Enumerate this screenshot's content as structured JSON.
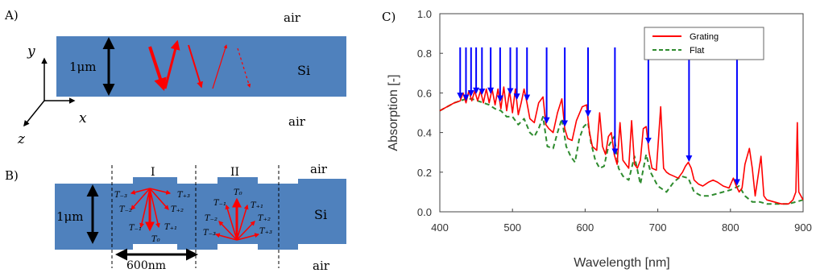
{
  "panelA": {
    "label": "A)",
    "air_top": "air",
    "air_bottom": "air",
    "material": "Si",
    "thickness": "1μm",
    "axis_x": "x",
    "axis_y": "y",
    "axis_z": "z",
    "slab_color": "#4f81bd",
    "ray_color": "#ff0000"
  },
  "panelB": {
    "label": "B)",
    "air_top": "air",
    "air_bottom": "air",
    "material": "Si",
    "thickness": "1μm",
    "period": "600nm",
    "region1": "I",
    "region2": "II",
    "orders_I": [
      "T₋₃",
      "T₋₂",
      "T₋₁",
      "T₀",
      "T₊₁",
      "T₊₂",
      "T₊₃"
    ],
    "orders_II": [
      "T₀",
      "T₋₁",
      "T₊₁",
      "T₋₂",
      "T₊₂",
      "T₋₃",
      "T₊₃"
    ]
  },
  "panelC": {
    "label": "C)",
    "chart_data": {
      "type": "line",
      "xlabel": "Wavelength [nm]",
      "ylabel": "Absorption  [-]",
      "xlim": [
        400,
        900
      ],
      "ylim": [
        0.0,
        1.0
      ],
      "xticks": [
        "400",
        "500",
        "600",
        "700",
        "800",
        "900"
      ],
      "yticks": [
        "0.0",
        "0.2",
        "0.4",
        "0.6",
        "0.8",
        "1.0"
      ],
      "grid": false,
      "legend_position": "top-right",
      "series": [
        {
          "name": "Grating",
          "color": "#ff0000",
          "style": "solid",
          "x": [
            400,
            410,
            420,
            428,
            432,
            436,
            440,
            444,
            448,
            452,
            456,
            460,
            464,
            468,
            472,
            476,
            480,
            484,
            488,
            492,
            496,
            500,
            504,
            508,
            512,
            516,
            520,
            524,
            530,
            536,
            542,
            546,
            550,
            556,
            562,
            568,
            572,
            576,
            582,
            588,
            596,
            602,
            606,
            610,
            616,
            620,
            624,
            628,
            632,
            636,
            640,
            644,
            648,
            652,
            656,
            660,
            664,
            668,
            672,
            676,
            680,
            684,
            688,
            692,
            698,
            704,
            708,
            712,
            716,
            722,
            728,
            734,
            738,
            742,
            746,
            750,
            756,
            762,
            766,
            770,
            776,
            782,
            790,
            798,
            804,
            808,
            812,
            816,
            820,
            826,
            830,
            834,
            838,
            842,
            846,
            850,
            860,
            870,
            880,
            886,
            890,
            892,
            894,
            900
          ],
          "y": [
            0.51,
            0.53,
            0.55,
            0.56,
            0.6,
            0.55,
            0.61,
            0.56,
            0.61,
            0.56,
            0.61,
            0.55,
            0.62,
            0.55,
            0.62,
            0.54,
            0.62,
            0.52,
            0.63,
            0.51,
            0.61,
            0.5,
            0.62,
            0.49,
            0.55,
            0.62,
            0.55,
            0.47,
            0.45,
            0.55,
            0.58,
            0.44,
            0.42,
            0.4,
            0.5,
            0.57,
            0.42,
            0.37,
            0.36,
            0.46,
            0.53,
            0.54,
            0.4,
            0.33,
            0.31,
            0.5,
            0.33,
            0.29,
            0.38,
            0.4,
            0.29,
            0.24,
            0.45,
            0.26,
            0.24,
            0.22,
            0.46,
            0.24,
            0.22,
            0.26,
            0.42,
            0.43,
            0.3,
            0.22,
            0.21,
            0.53,
            0.22,
            0.2,
            0.19,
            0.18,
            0.17,
            0.2,
            0.23,
            0.25,
            0.22,
            0.16,
            0.14,
            0.13,
            0.14,
            0.15,
            0.16,
            0.15,
            0.13,
            0.12,
            0.17,
            0.13,
            0.1,
            0.12,
            0.24,
            0.32,
            0.22,
            0.08,
            0.18,
            0.28,
            0.08,
            0.06,
            0.05,
            0.04,
            0.04,
            0.06,
            0.1,
            0.45,
            0.1,
            0.06
          ]
        },
        {
          "name": "Flat",
          "color": "#2e8b2e",
          "style": "dashed",
          "x": [
            400,
            410,
            420,
            428,
            436,
            444,
            452,
            460,
            468,
            476,
            484,
            492,
            500,
            508,
            516,
            524,
            530,
            536,
            542,
            548,
            556,
            562,
            568,
            574,
            580,
            586,
            592,
            598,
            604,
            608,
            614,
            620,
            626,
            632,
            640,
            646,
            652,
            660,
            668,
            676,
            684,
            690,
            700,
            712,
            722,
            732,
            742,
            750,
            760,
            770,
            780,
            790,
            800,
            812,
            820,
            830,
            840,
            850,
            860,
            870,
            880,
            890,
            900
          ],
          "y": [
            0.51,
            0.53,
            0.55,
            0.56,
            0.57,
            0.57,
            0.56,
            0.55,
            0.54,
            0.52,
            0.51,
            0.48,
            0.48,
            0.44,
            0.47,
            0.4,
            0.38,
            0.42,
            0.48,
            0.33,
            0.32,
            0.4,
            0.47,
            0.33,
            0.28,
            0.25,
            0.37,
            0.43,
            0.45,
            0.35,
            0.26,
            0.22,
            0.23,
            0.33,
            0.38,
            0.22,
            0.18,
            0.16,
            0.28,
            0.14,
            0.29,
            0.2,
            0.13,
            0.1,
            0.15,
            0.18,
            0.17,
            0.1,
            0.08,
            0.08,
            0.09,
            0.1,
            0.11,
            0.13,
            0.08,
            0.05,
            0.05,
            0.04,
            0.04,
            0.04,
            0.04,
            0.05,
            0.06
          ]
        }
      ],
      "arrows_x": [
        428,
        436,
        443,
        450,
        458,
        470,
        483,
        497,
        506,
        520,
        547,
        572,
        604,
        641,
        687,
        743,
        809
      ]
    }
  }
}
